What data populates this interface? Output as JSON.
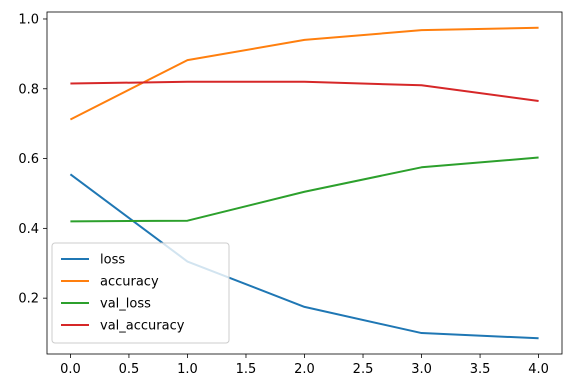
{
  "chart_data": {
    "type": "line",
    "title": "",
    "xlabel": "",
    "ylabel": "",
    "x": [
      0.0,
      1.0,
      2.0,
      3.0,
      4.0
    ],
    "xlim": [
      -0.2,
      4.2
    ],
    "ylim": [
      0.04,
      1.02
    ],
    "x_ticks": [
      0.0,
      0.5,
      1.0,
      1.5,
      2.0,
      2.5,
      3.0,
      3.5,
      4.0
    ],
    "x_tick_labels": [
      "0.0",
      "0.5",
      "1.0",
      "1.5",
      "2.0",
      "2.5",
      "3.0",
      "3.5",
      "4.0"
    ],
    "y_ticks": [
      0.2,
      0.4,
      0.6,
      0.8,
      1.0
    ],
    "y_tick_labels": [
      "0.2",
      "0.4",
      "0.6",
      "0.8",
      "1.0"
    ],
    "grid": false,
    "legend_position": "lower-left",
    "series": [
      {
        "name": "loss",
        "color": "#1f77b4",
        "values": [
          0.555,
          0.305,
          0.175,
          0.1,
          0.085
        ]
      },
      {
        "name": "accuracy",
        "color": "#ff7f0e",
        "values": [
          0.712,
          0.882,
          0.94,
          0.968,
          0.975
        ]
      },
      {
        "name": "val_loss",
        "color": "#2ca02c",
        "values": [
          0.42,
          0.422,
          0.505,
          0.575,
          0.603
        ]
      },
      {
        "name": "val_accuracy",
        "color": "#d62728",
        "values": [
          0.815,
          0.82,
          0.82,
          0.81,
          0.765
        ]
      }
    ]
  }
}
